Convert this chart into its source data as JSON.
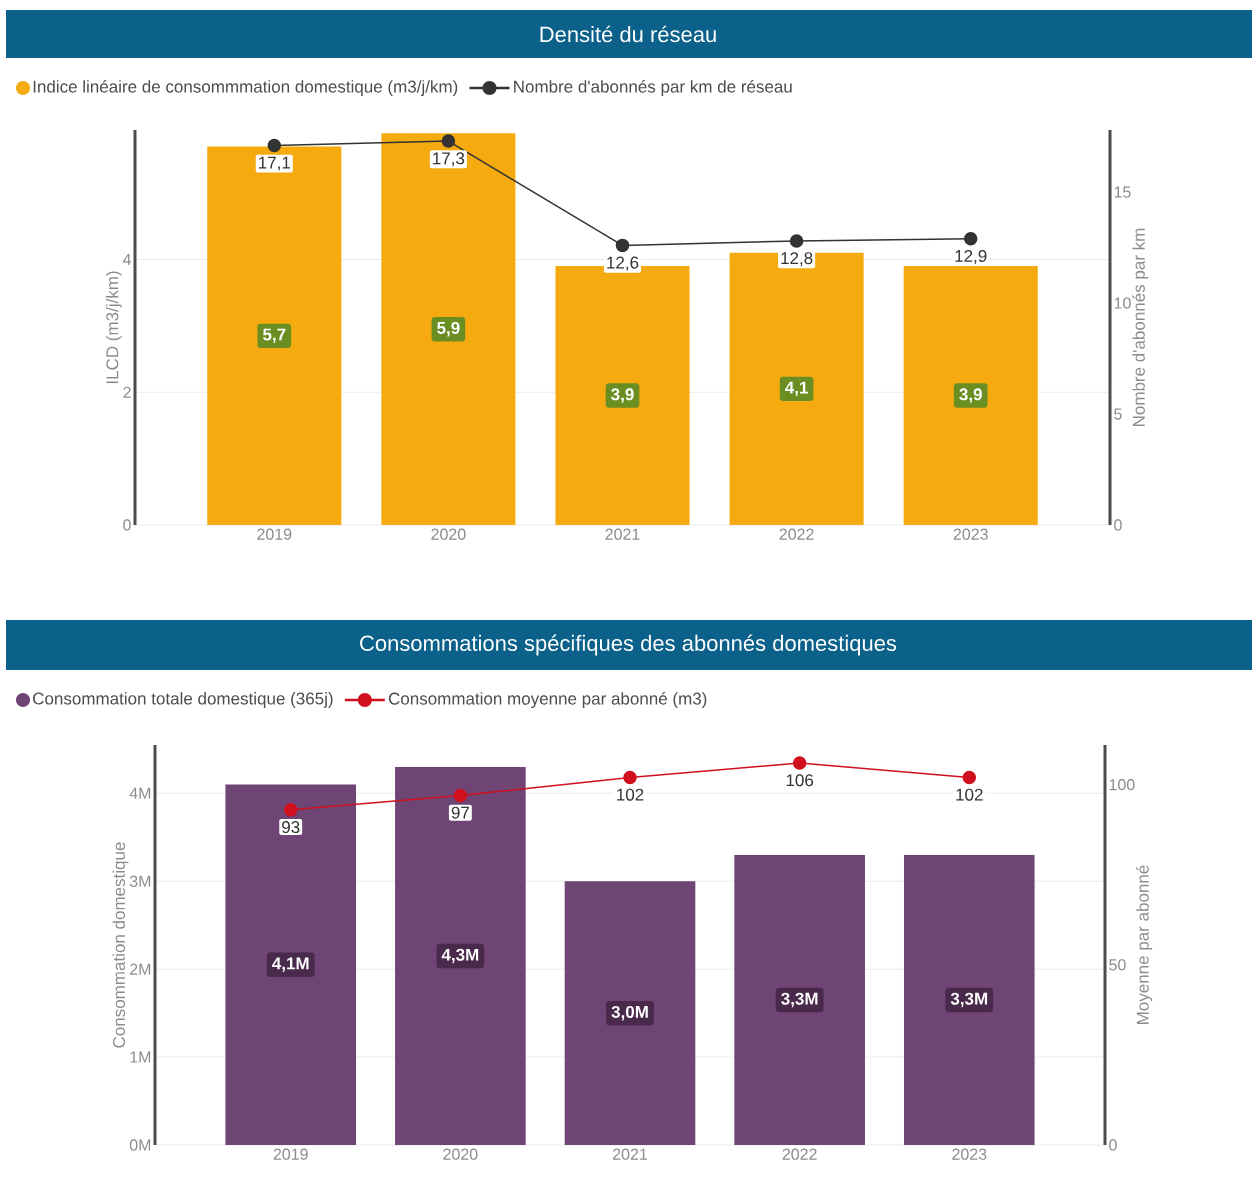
{
  "chart_data": [
    {
      "type": "bar",
      "title": "Densité du réseau",
      "categories": [
        "2019",
        "2020",
        "2021",
        "2022",
        "2023"
      ],
      "ylabel": "ILCD (m3/j/km)",
      "y2label": "Nombre d'abonnés par km",
      "ylim": [
        0,
        5.95
      ],
      "yticks": [
        0,
        2,
        4
      ],
      "y2lim": [
        0,
        17.8
      ],
      "y2ticks": [
        0,
        5,
        10,
        15
      ],
      "grid": "y",
      "legend": "top left",
      "series": [
        {
          "name": "Indice linéaire de consommmation domestique (m3/j/km)",
          "color": "#f5aa0f",
          "values": [
            5.7,
            5.9,
            3.9,
            4.1,
            3.9
          ],
          "value_labels": [
            "5,7",
            "5,9",
            "3,9",
            "4,1",
            "3,9"
          ]
        },
        {
          "type": "line",
          "axis": "y2",
          "name": "Nombre d'abonnés par km de réseau",
          "color": "#333333",
          "marker": "circle",
          "line_style": "solid",
          "values": [
            17.1,
            17.3,
            12.6,
            12.8,
            12.9
          ],
          "value_labels": [
            "17,1",
            "17,3",
            "12,6",
            "12,8",
            "12,9"
          ]
        }
      ]
    },
    {
      "type": "bar",
      "title": "Consommations spécifiques des abonnés domestiques",
      "categories": [
        "2019",
        "2020",
        "2021",
        "2022",
        "2023"
      ],
      "ylabel": "Consommation domestique",
      "y2label": "Moyenne par abonné",
      "ylim": [
        0,
        4550000
      ],
      "yticks": [
        {
          "value": 0,
          "label": "0M"
        },
        {
          "value": 1000000,
          "label": "1M"
        },
        {
          "value": 2000000,
          "label": "2M"
        },
        {
          "value": 3000000,
          "label": "3M"
        },
        {
          "value": 4000000,
          "label": "4M"
        }
      ],
      "y2lim": [
        0,
        111
      ],
      "y2ticks": [
        0,
        50,
        100
      ],
      "grid": "y",
      "legend": "top left",
      "series": [
        {
          "name": "Consommation totale domestique (365j)",
          "color": "#6e4574",
          "values": [
            4100000,
            4300000,
            3000000,
            3300000,
            3300000
          ],
          "value_labels": [
            "4,1M",
            "4,3M",
            "3,0M",
            "3,3M",
            "3,3M"
          ]
        },
        {
          "type": "line",
          "axis": "y2",
          "name": "Consommation moyenne par abonné (m3)",
          "color": "#d0101e",
          "marker": "circle",
          "line_style": "solid",
          "values": [
            93,
            97,
            102,
            106,
            102
          ],
          "value_labels": [
            "93",
            "97",
            "102",
            "106",
            "102"
          ]
        }
      ]
    }
  ]
}
